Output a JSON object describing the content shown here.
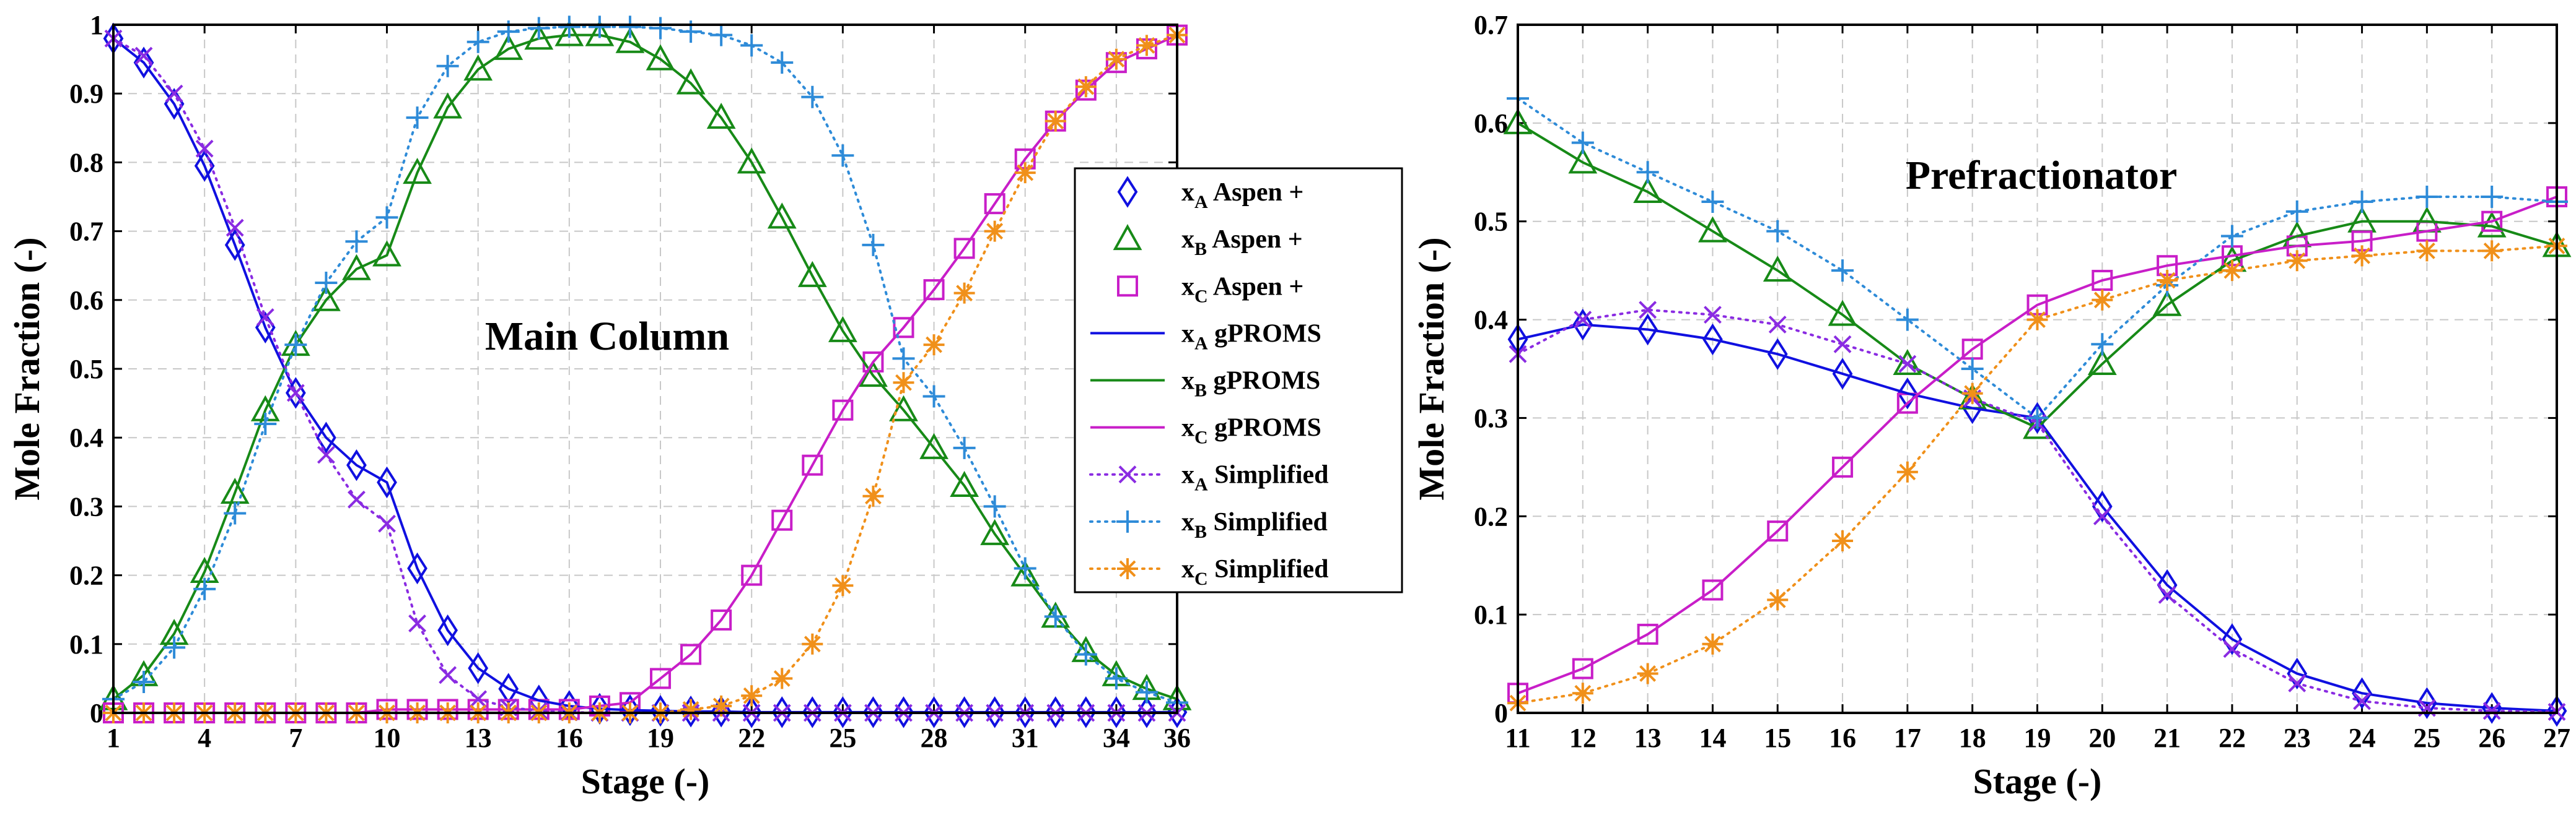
{
  "colors": {
    "blue": "#1010e0",
    "green": "#178a17",
    "magenta": "#c81ec8",
    "purple": "#8a2be2",
    "cyan": "#2e8bd8",
    "orange": "#f0901a"
  },
  "chart_data": [
    {
      "type": "line",
      "title": "Main Column",
      "xlabel": "Stage (-)",
      "ylabel": "Mole Fraction  (-)",
      "xlim": [
        1,
        36
      ],
      "ylim": [
        0,
        1
      ],
      "xticks": [
        1,
        4,
        7,
        10,
        13,
        16,
        19,
        22,
        25,
        28,
        31,
        34,
        36
      ],
      "yticks": [
        0,
        0.1,
        0.2,
        0.3,
        0.4,
        0.5,
        0.6,
        0.7,
        0.8,
        0.9,
        1
      ],
      "ytick_labels": [
        "0",
        "0.1",
        "0.2",
        "0.3",
        "0.4",
        "0.5",
        "0.6",
        "0.7",
        "0.8",
        "0.9",
        "1"
      ],
      "grid": true,
      "legend": [
        {
          "comp": "x",
          "sub": "A",
          "name": "Aspen +",
          "marker": "diamond",
          "line": "none",
          "color": "blue"
        },
        {
          "comp": "x",
          "sub": "B",
          "name": "Aspen +",
          "marker": "triangle",
          "line": "none",
          "color": "green"
        },
        {
          "comp": "x",
          "sub": "C",
          "name": "Aspen +",
          "marker": "square",
          "line": "none",
          "color": "magenta"
        },
        {
          "comp": "x",
          "sub": "A",
          "name": "gPROMS",
          "marker": "none",
          "line": "solid",
          "color": "blue"
        },
        {
          "comp": "x",
          "sub": "B",
          "name": "gPROMS",
          "marker": "none",
          "line": "solid",
          "color": "green"
        },
        {
          "comp": "x",
          "sub": "C",
          "name": "gPROMS",
          "marker": "none",
          "line": "solid",
          "color": "magenta"
        },
        {
          "comp": "x",
          "sub": "A",
          "name": "Simplified",
          "marker": "x",
          "line": "dotted",
          "color": "purple"
        },
        {
          "comp": "x",
          "sub": "B",
          "name": "Simplified",
          "marker": "plus",
          "line": "dotted",
          "color": "cyan"
        },
        {
          "comp": "x",
          "sub": "C",
          "name": "Simplified",
          "marker": "star",
          "line": "dotted",
          "color": "orange"
        }
      ],
      "x": [
        1,
        2,
        3,
        4,
        5,
        6,
        7,
        8,
        9,
        10,
        11,
        12,
        13,
        14,
        15,
        16,
        17,
        18,
        19,
        20,
        21,
        22,
        23,
        24,
        25,
        26,
        27,
        28,
        29,
        30,
        31,
        32,
        33,
        34,
        35,
        36
      ],
      "series": [
        {
          "name": "xA Aspen +",
          "color": "blue",
          "marker": "diamond",
          "line": "none",
          "values": [
            0.98,
            0.945,
            0.885,
            0.795,
            0.68,
            0.56,
            0.465,
            0.4,
            0.36,
            0.335,
            0.21,
            0.12,
            0.065,
            0.035,
            0.018,
            0.01,
            0.006,
            0.004,
            0.003,
            0.002,
            0.002,
            0.001,
            0.001,
            0.001,
            0.001,
            0.001,
            0.001,
            0.001,
            0.001,
            0.001,
            0.001,
            0.001,
            0.001,
            0.001,
            0.001,
            0.001
          ]
        },
        {
          "name": "xB Aspen +",
          "color": "green",
          "marker": "triangle",
          "line": "none",
          "values": [
            0.02,
            0.055,
            0.115,
            0.205,
            0.32,
            0.44,
            0.535,
            0.6,
            0.645,
            0.665,
            0.785,
            0.88,
            0.935,
            0.965,
            0.98,
            0.985,
            0.985,
            0.975,
            0.95,
            0.915,
            0.865,
            0.8,
            0.72,
            0.635,
            0.555,
            0.49,
            0.44,
            0.385,
            0.33,
            0.26,
            0.2,
            0.14,
            0.09,
            0.055,
            0.035,
            0.02
          ]
        },
        {
          "name": "xC Aspen +",
          "color": "magenta",
          "marker": "square",
          "line": "none",
          "values": [
            0,
            0,
            0,
            0,
            0,
            0,
            0,
            0,
            0,
            0.005,
            0.005,
            0.005,
            0.005,
            0.005,
            0.005,
            0.005,
            0.01,
            0.015,
            0.05,
            0.085,
            0.135,
            0.2,
            0.28,
            0.36,
            0.44,
            0.51,
            0.56,
            0.615,
            0.675,
            0.74,
            0.805,
            0.86,
            0.905,
            0.945,
            0.965,
            0.985
          ]
        },
        {
          "name": "xA gPROMS",
          "color": "blue",
          "marker": "none",
          "line": "solid",
          "values": [
            0.98,
            0.945,
            0.885,
            0.795,
            0.68,
            0.56,
            0.465,
            0.4,
            0.36,
            0.335,
            0.21,
            0.12,
            0.065,
            0.035,
            0.018,
            0.01,
            0.006,
            0.004,
            0.003,
            0.002,
            0.002,
            0.001,
            0.001,
            0.001,
            0.001,
            0.001,
            0.001,
            0.001,
            0.001,
            0.001,
            0.001,
            0.001,
            0.001,
            0.001,
            0.001,
            0.001
          ]
        },
        {
          "name": "xB gPROMS",
          "color": "green",
          "marker": "none",
          "line": "solid",
          "values": [
            0.02,
            0.055,
            0.115,
            0.205,
            0.32,
            0.44,
            0.535,
            0.6,
            0.645,
            0.665,
            0.785,
            0.88,
            0.935,
            0.965,
            0.98,
            0.985,
            0.985,
            0.975,
            0.95,
            0.915,
            0.865,
            0.8,
            0.72,
            0.635,
            0.555,
            0.49,
            0.44,
            0.385,
            0.33,
            0.26,
            0.2,
            0.14,
            0.09,
            0.055,
            0.035,
            0.02
          ]
        },
        {
          "name": "xC gPROMS",
          "color": "magenta",
          "marker": "none",
          "line": "solid",
          "values": [
            0,
            0,
            0,
            0,
            0,
            0,
            0,
            0,
            0,
            0.005,
            0.005,
            0.005,
            0.005,
            0.005,
            0.005,
            0.005,
            0.01,
            0.015,
            0.05,
            0.085,
            0.135,
            0.2,
            0.28,
            0.36,
            0.44,
            0.51,
            0.56,
            0.615,
            0.675,
            0.74,
            0.805,
            0.86,
            0.905,
            0.945,
            0.965,
            0.985
          ]
        },
        {
          "name": "xA Simplified",
          "color": "purple",
          "marker": "x",
          "line": "dotted",
          "values": [
            0.98,
            0.955,
            0.9,
            0.82,
            0.705,
            0.575,
            0.465,
            0.375,
            0.31,
            0.275,
            0.13,
            0.055,
            0.02,
            0.008,
            0.003,
            0.001,
            0,
            0,
            0,
            0,
            0,
            0,
            0,
            0,
            0,
            0,
            0,
            0,
            0,
            0,
            0,
            0,
            0,
            0,
            0,
            0
          ]
        },
        {
          "name": "xB Simplified",
          "color": "cyan",
          "marker": "plus",
          "line": "dotted",
          "values": [
            0.02,
            0.045,
            0.095,
            0.18,
            0.29,
            0.42,
            0.535,
            0.625,
            0.685,
            0.72,
            0.865,
            0.94,
            0.975,
            0.99,
            0.995,
            0.997,
            0.997,
            0.997,
            0.995,
            0.99,
            0.985,
            0.97,
            0.945,
            0.895,
            0.81,
            0.68,
            0.515,
            0.46,
            0.385,
            0.3,
            0.21,
            0.14,
            0.085,
            0.05,
            0.03,
            0.015
          ]
        },
        {
          "name": "xC Simplified",
          "color": "orange",
          "marker": "star",
          "line": "dotted",
          "values": [
            0,
            0,
            0,
            0,
            0,
            0,
            0,
            0,
            0,
            0,
            0,
            0,
            0,
            0,
            0,
            0,
            0,
            0,
            0,
            0.005,
            0.01,
            0.025,
            0.05,
            0.1,
            0.185,
            0.315,
            0.48,
            0.535,
            0.61,
            0.7,
            0.785,
            0.86,
            0.91,
            0.95,
            0.97,
            0.985
          ]
        }
      ]
    },
    {
      "type": "line",
      "title": "Prefractionator",
      "xlabel": "Stage (-)",
      "ylabel": "Mole Fraction  (-)",
      "xlim": [
        11,
        27
      ],
      "ylim": [
        0,
        0.7
      ],
      "xticks": [
        11,
        12,
        13,
        14,
        15,
        16,
        17,
        18,
        19,
        20,
        21,
        22,
        23,
        24,
        25,
        26,
        27
      ],
      "yticks": [
        0,
        0.1,
        0.2,
        0.3,
        0.4,
        0.5,
        0.6,
        0.7
      ],
      "ytick_labels": [
        "0",
        "0.1",
        "0.2",
        "0.3",
        "0.4",
        "0.5",
        "0.6",
        "0.7"
      ],
      "grid": true,
      "x": [
        11,
        12,
        13,
        14,
        15,
        16,
        17,
        18,
        19,
        20,
        21,
        22,
        23,
        24,
        25,
        26,
        27
      ],
      "series": [
        {
          "name": "xA Aspen +",
          "color": "blue",
          "marker": "diamond",
          "line": "none",
          "values": [
            0.38,
            0.395,
            0.39,
            0.38,
            0.365,
            0.345,
            0.325,
            0.31,
            0.3,
            0.21,
            0.13,
            0.075,
            0.04,
            0.02,
            0.01,
            0.005,
            0.002
          ]
        },
        {
          "name": "xB Aspen +",
          "color": "green",
          "marker": "triangle",
          "line": "none",
          "values": [
            0.6,
            0.56,
            0.53,
            0.49,
            0.45,
            0.405,
            0.355,
            0.32,
            0.29,
            0.355,
            0.415,
            0.46,
            0.485,
            0.5,
            0.5,
            0.495,
            0.475
          ]
        },
        {
          "name": "xC Aspen +",
          "color": "magenta",
          "marker": "square",
          "line": "none",
          "values": [
            0.02,
            0.045,
            0.08,
            0.125,
            0.185,
            0.25,
            0.315,
            0.37,
            0.415,
            0.44,
            0.455,
            0.465,
            0.475,
            0.48,
            0.49,
            0.5,
            0.525
          ]
        },
        {
          "name": "xA gPROMS",
          "color": "blue",
          "marker": "none",
          "line": "solid",
          "values": [
            0.38,
            0.395,
            0.39,
            0.38,
            0.365,
            0.345,
            0.325,
            0.31,
            0.3,
            0.21,
            0.13,
            0.075,
            0.04,
            0.02,
            0.01,
            0.005,
            0.002
          ]
        },
        {
          "name": "xB gPROMS",
          "color": "green",
          "marker": "none",
          "line": "solid",
          "values": [
            0.6,
            0.56,
            0.53,
            0.49,
            0.45,
            0.405,
            0.355,
            0.32,
            0.29,
            0.355,
            0.415,
            0.46,
            0.485,
            0.5,
            0.5,
            0.495,
            0.475
          ]
        },
        {
          "name": "xC gPROMS",
          "color": "magenta",
          "marker": "none",
          "line": "solid",
          "values": [
            0.02,
            0.045,
            0.08,
            0.125,
            0.185,
            0.25,
            0.315,
            0.37,
            0.415,
            0.44,
            0.455,
            0.465,
            0.475,
            0.48,
            0.49,
            0.5,
            0.525
          ]
        },
        {
          "name": "xA Simplified",
          "color": "purple",
          "marker": "x",
          "line": "dotted",
          "values": [
            0.365,
            0.4,
            0.41,
            0.405,
            0.395,
            0.375,
            0.355,
            0.32,
            0.295,
            0.2,
            0.12,
            0.065,
            0.03,
            0.012,
            0.005,
            0.002,
            0.001
          ]
        },
        {
          "name": "xB Simplified",
          "color": "cyan",
          "marker": "plus",
          "line": "dotted",
          "values": [
            0.625,
            0.58,
            0.55,
            0.52,
            0.49,
            0.45,
            0.4,
            0.35,
            0.3,
            0.375,
            0.435,
            0.485,
            0.51,
            0.52,
            0.525,
            0.525,
            0.52
          ]
        },
        {
          "name": "xC Simplified",
          "color": "orange",
          "marker": "star",
          "line": "dotted",
          "values": [
            0.01,
            0.02,
            0.04,
            0.07,
            0.115,
            0.175,
            0.245,
            0.325,
            0.4,
            0.42,
            0.44,
            0.45,
            0.46,
            0.465,
            0.47,
            0.47,
            0.475
          ]
        }
      ]
    }
  ]
}
